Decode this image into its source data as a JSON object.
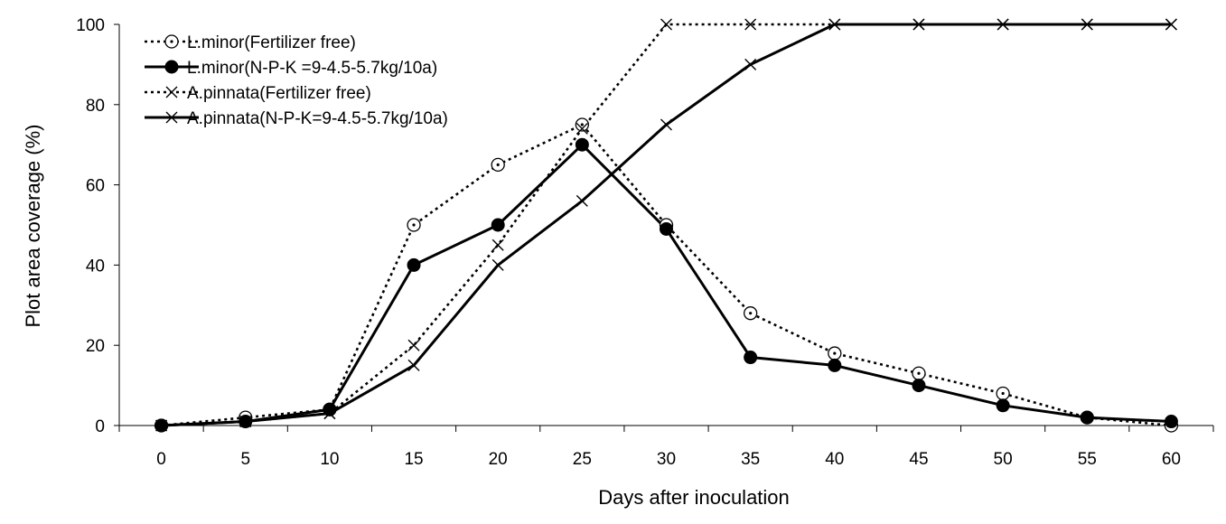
{
  "chart_data": {
    "type": "line",
    "title": "",
    "xlabel": "Days after inoculation",
    "ylabel": "Plot area coverage (%)",
    "x": [
      0,
      5,
      10,
      15,
      20,
      25,
      30,
      35,
      40,
      45,
      50,
      55,
      60
    ],
    "xlim": [
      0,
      60
    ],
    "ylim": [
      0,
      100
    ],
    "yticks": [
      0,
      20,
      40,
      60,
      80,
      100
    ],
    "grid": false,
    "legend_position": "top-left",
    "series": [
      {
        "name": "L.minor(Fertilizer free)",
        "marker": "circle-dot",
        "line_style": "dotted",
        "color": "#000000",
        "values": [
          0,
          2,
          4,
          50,
          65,
          75,
          50,
          28,
          18,
          13,
          8,
          2,
          0
        ]
      },
      {
        "name": "L.minor(N-P-K =9-4.5-5.7kg/10a)",
        "marker": "filled-circle",
        "line_style": "solid",
        "color": "#000000",
        "values": [
          0,
          1,
          4,
          40,
          50,
          70,
          49,
          17,
          15,
          10,
          5,
          2,
          1
        ]
      },
      {
        "name": "A.pinnata(Fertilizer free)",
        "marker": "x",
        "line_style": "dotted",
        "color": "#000000",
        "values": [
          0,
          1,
          3,
          20,
          45,
          74,
          100,
          100,
          100,
          100,
          100,
          100,
          100
        ]
      },
      {
        "name": "A.pinnata(N-P-K=9-4.5-5.7kg/10a)",
        "marker": "x",
        "line_style": "solid",
        "color": "#000000",
        "values": [
          0,
          1,
          3,
          15,
          40,
          56,
          75,
          90,
          100,
          100,
          100,
          100,
          100
        ]
      }
    ]
  }
}
